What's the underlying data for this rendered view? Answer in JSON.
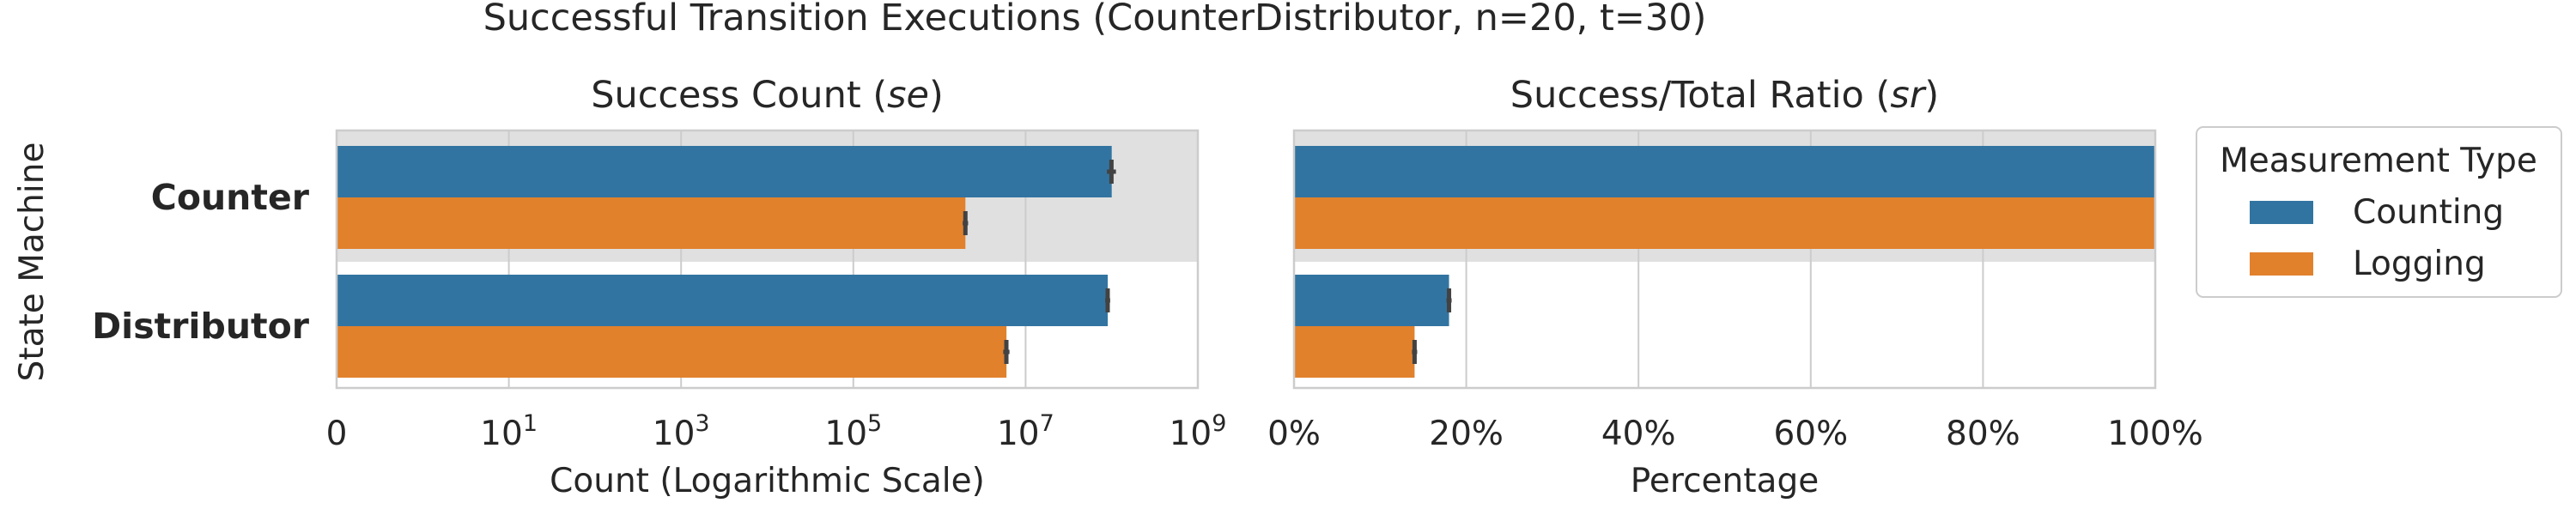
{
  "figure": {
    "title": "Successful Transition Executions (CounterDistributor, n=20, t=30)",
    "ylabel": "State Machine"
  },
  "legend": {
    "title": "Measurement Type",
    "placement": "right-outside-top",
    "items": [
      {
        "label": "Counting",
        "color": "#3274a1"
      },
      {
        "label": "Logging",
        "color": "#e1812c"
      }
    ]
  },
  "chart_data": [
    {
      "type": "bar",
      "orientation": "horizontal",
      "title": "Success Count (se)",
      "title_main": "Success Count (",
      "title_sym": "se",
      "title_end": ")",
      "xlabel": "Count (Logarithmic Scale)",
      "xscale": "symlog",
      "xlim": [
        0,
        1000000000
      ],
      "xticks": [
        {
          "base": "0",
          "exp": ""
        },
        {
          "base": "10",
          "exp": "1"
        },
        {
          "base": "10",
          "exp": "3"
        },
        {
          "base": "10",
          "exp": "5"
        },
        {
          "base": "10",
          "exp": "7"
        },
        {
          "base": "10",
          "exp": "9"
        }
      ],
      "grid": true,
      "categories": [
        "Counter",
        "Distributor"
      ],
      "highlighted_category": "Counter",
      "series": [
        {
          "name": "Counting",
          "values": [
            100000000,
            90000000
          ],
          "err": [
            [
              88000000,
              112000000
            ],
            [
              84000000,
              96000000
            ]
          ]
        },
        {
          "name": "Logging",
          "values": [
            2000000,
            6000000
          ],
          "err": [
            [
              1860000,
              2150000
            ],
            [
              5500000,
              6500000
            ]
          ]
        }
      ]
    },
    {
      "type": "bar",
      "orientation": "horizontal",
      "title": "Success/Total Ratio (sr)",
      "title_main": "Success/Total Ratio (",
      "title_sym": "sr",
      "title_end": ")",
      "xlabel": "Percentage",
      "xscale": "linear",
      "xlim": [
        0,
        100
      ],
      "xticks": [
        "0%",
        "20%",
        "40%",
        "60%",
        "80%",
        "100%"
      ],
      "grid": true,
      "categories": [
        "Counter",
        "Distributor"
      ],
      "highlighted_category": "Counter",
      "series": [
        {
          "name": "Counting",
          "values": [
            100,
            18
          ],
          "err": [
            [
              100,
              100
            ],
            [
              17.7,
              18.3
            ]
          ]
        },
        {
          "name": "Logging",
          "values": [
            100,
            14
          ],
          "err": [
            [
              100,
              100
            ],
            [
              13.7,
              14.3
            ]
          ]
        }
      ]
    }
  ]
}
